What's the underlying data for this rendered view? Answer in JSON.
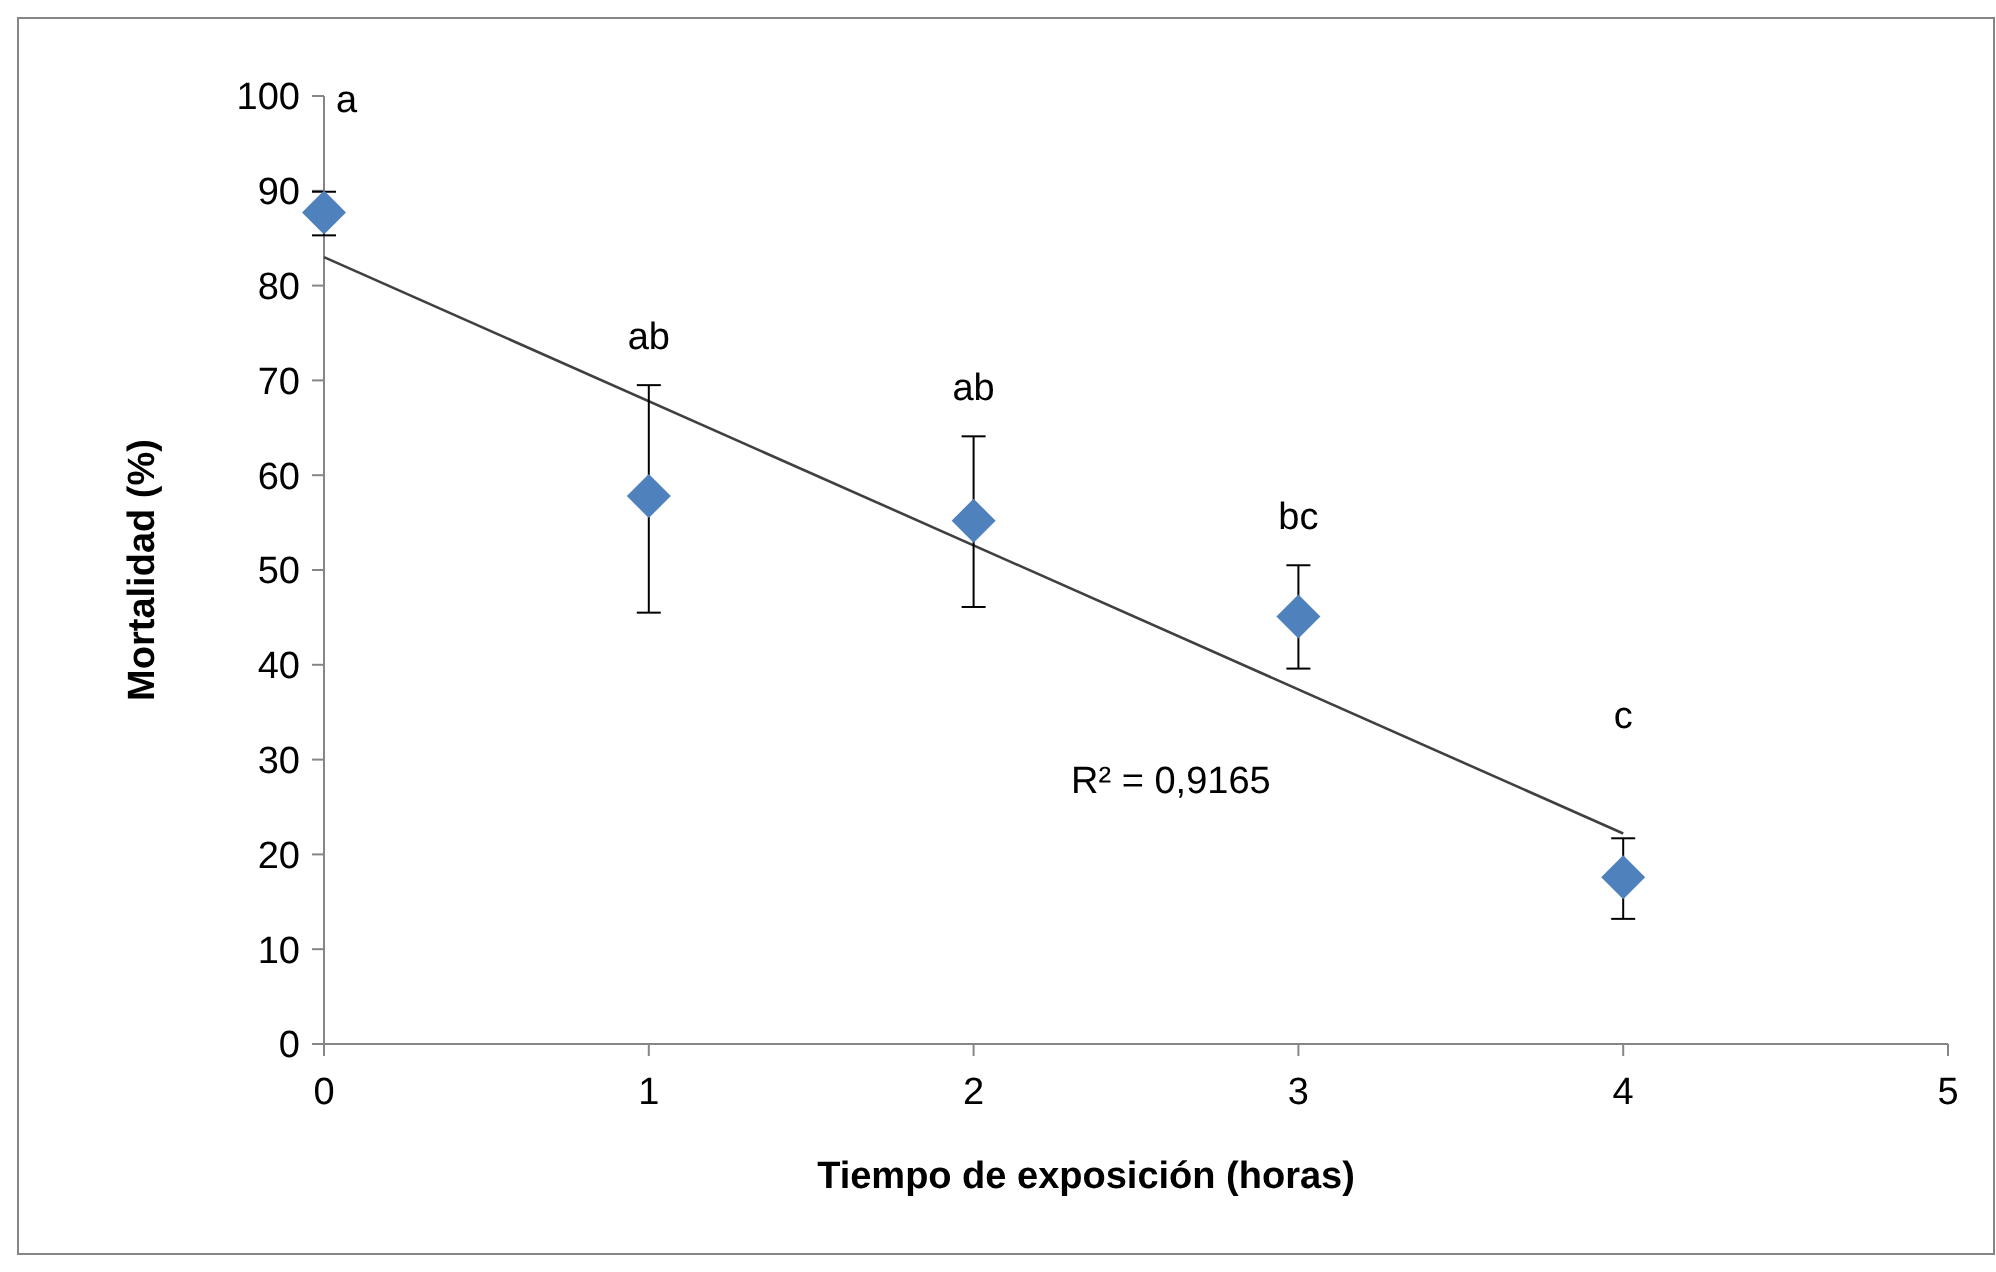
{
  "chart_data": {
    "type": "scatter",
    "xlabel": "Tiempo de exposición (horas)",
    "ylabel": "Mortalidad (%)",
    "x": [
      0,
      1,
      2,
      3,
      4
    ],
    "xlim": [
      0,
      5
    ],
    "xticks": [
      0,
      1,
      2,
      3,
      4,
      5
    ],
    "ylim": [
      0,
      100
    ],
    "yticks": [
      0,
      10,
      20,
      30,
      40,
      50,
      60,
      70,
      80,
      90,
      100
    ],
    "grid": false,
    "marker": "diamond",
    "series": [
      {
        "color": "#4f81bd",
        "values": [
          87.7,
          57.8,
          55.2,
          45.1,
          17.6
        ],
        "errors": [
          [
            85.3,
            89.9
          ],
          [
            45.5,
            69.5
          ],
          [
            46.1,
            64.1
          ],
          [
            39.6,
            50.5
          ],
          [
            13.2,
            21.7
          ]
        ]
      },
      {
        "type": "line",
        "color": "#404040",
        "x": [
          0,
          4
        ],
        "values": [
          83.0,
          22.2
        ],
        "marker": "none",
        "line_style": "solid"
      }
    ],
    "annotations": [
      "a",
      "ab",
      "ab",
      "bc",
      "c",
      "R² = 0,9165"
    ]
  }
}
